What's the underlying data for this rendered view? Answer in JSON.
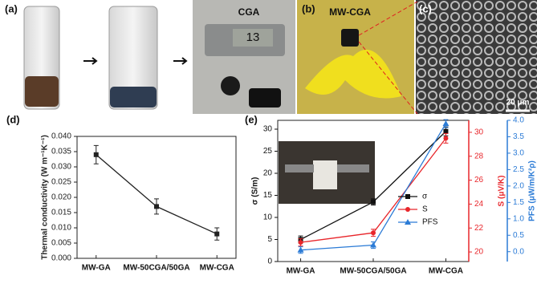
{
  "panels": {
    "a": "(a)",
    "b": "(b)",
    "c": "(c)",
    "cga": "CGA",
    "mwcga": "MW-CGA",
    "display": "13",
    "scale_bar": "20 μm"
  },
  "chart_data": [
    {
      "type": "line",
      "panel": "(d)",
      "ylabel": "Thermal conductivity (W m⁻¹K⁻¹)",
      "categories": [
        "MW-GA",
        "MW-50CGA/50GA",
        "MW-CGA"
      ],
      "series": [
        {
          "color": "#222222",
          "marker": "square",
          "values": [
            0.034,
            0.017,
            0.008
          ],
          "errors": [
            0.003,
            0.0025,
            0.002
          ]
        }
      ],
      "ylim": [
        0,
        0.04
      ],
      "yticks": [
        {
          "value": 0,
          "label": "0.000"
        },
        0.005,
        {
          "value": 0.01,
          "label": "0.010"
        },
        0.015,
        {
          "value": 0.02,
          "label": "0.020"
        },
        0.025,
        {
          "value": 0.03,
          "label": "0.030"
        },
        0.035,
        {
          "value": 0.04,
          "label": "0.040"
        }
      ]
    },
    {
      "type": "line",
      "panel": "(e)",
      "ylabel": "σ (S/m)",
      "y2label": "S (μV/K)",
      "y3label": "PFS (μW/m/K²ρ)",
      "categories": [
        "MW-GA",
        "MW-50CGA/50GA",
        "MW-CGA"
      ],
      "legend": "center right",
      "series": [
        {
          "name": "σ",
          "color": "#111111",
          "marker": "square",
          "values": [
            5,
            13.5,
            29.5
          ],
          "errors": [
            0.8,
            0.7,
            1.0
          ]
        },
        {
          "name": "S",
          "color": "#e8262b",
          "marker": "circle",
          "axis": "y2",
          "values": [
            20.8,
            21.6,
            29.5
          ],
          "errors": [
            0.3,
            0.3,
            0.4
          ]
        },
        {
          "name": "PFS",
          "color": "#2b7bd6",
          "marker": "triangle",
          "axis": "y3",
          "values": [
            0.05,
            0.2,
            3.9
          ],
          "errors": [
            0.1,
            0.1,
            0.12
          ]
        }
      ],
      "ylim": [
        0,
        32
      ],
      "yticks": [
        0,
        5,
        10,
        15,
        20,
        25,
        30
      ],
      "y2lim": [
        19.2,
        31
      ],
      "y2ticks": [
        20,
        22,
        24,
        26,
        28,
        30
      ],
      "y3lim": [
        -0.3,
        4
      ],
      "y3ticks": [
        {
          "value": 0,
          "label": "0.0"
        },
        0.5,
        {
          "value": 1,
          "label": "1.0"
        },
        1.5,
        {
          "value": 2,
          "label": "2.0"
        },
        2.5,
        {
          "value": 3,
          "label": "3.0"
        },
        3.5,
        {
          "value": 4,
          "label": "4.0"
        }
      ]
    }
  ]
}
